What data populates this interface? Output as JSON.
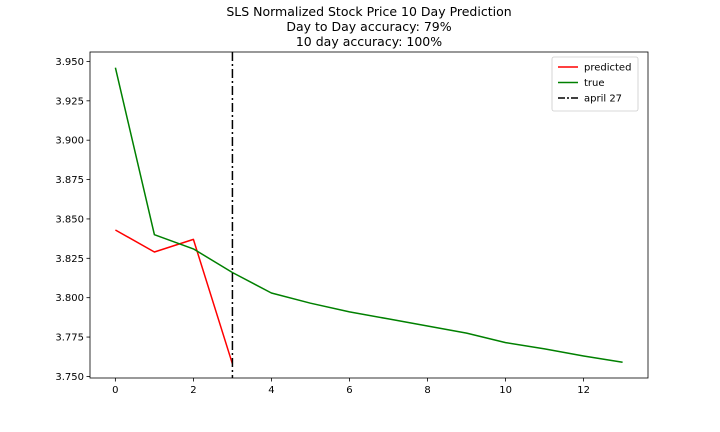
{
  "chart_data": {
    "type": "line",
    "title_lines": [
      "SLS Normalized Stock Price 10 Day Prediction",
      "Day to Day accuracy: 79%",
      "10 day accuracy: 100%"
    ],
    "xlim": [
      -0.65,
      13.65
    ],
    "ylim": [
      3.749,
      3.956
    ],
    "xticks": [
      0,
      2,
      4,
      6,
      8,
      10,
      12
    ],
    "yticks": [
      3.75,
      3.775,
      3.8,
      3.825,
      3.85,
      3.875,
      3.9,
      3.925,
      3.95
    ],
    "ytick_labels": [
      "3.750",
      "3.775",
      "3.800",
      "3.825",
      "3.850",
      "3.875",
      "3.900",
      "3.925",
      "3.950"
    ],
    "series": [
      {
        "name": "predicted",
        "color": "#ff0000",
        "x": [
          0,
          1,
          2,
          3
        ],
        "y": [
          3.843,
          3.829,
          3.837,
          3.758
        ]
      },
      {
        "name": "true",
        "color": "#008000",
        "x": [
          0,
          1,
          2,
          3,
          4,
          5,
          6,
          7,
          8,
          9,
          10,
          11,
          12,
          13
        ],
        "y": [
          3.946,
          3.84,
          3.831,
          3.816,
          3.803,
          3.7965,
          3.791,
          3.7865,
          3.782,
          3.7775,
          3.7715,
          3.7675,
          3.763,
          3.759
        ]
      }
    ],
    "vline": {
      "name": "april 27",
      "x": 3,
      "color": "#000000",
      "style": "dashdot"
    },
    "legend_position": "top-right",
    "grid": false
  }
}
